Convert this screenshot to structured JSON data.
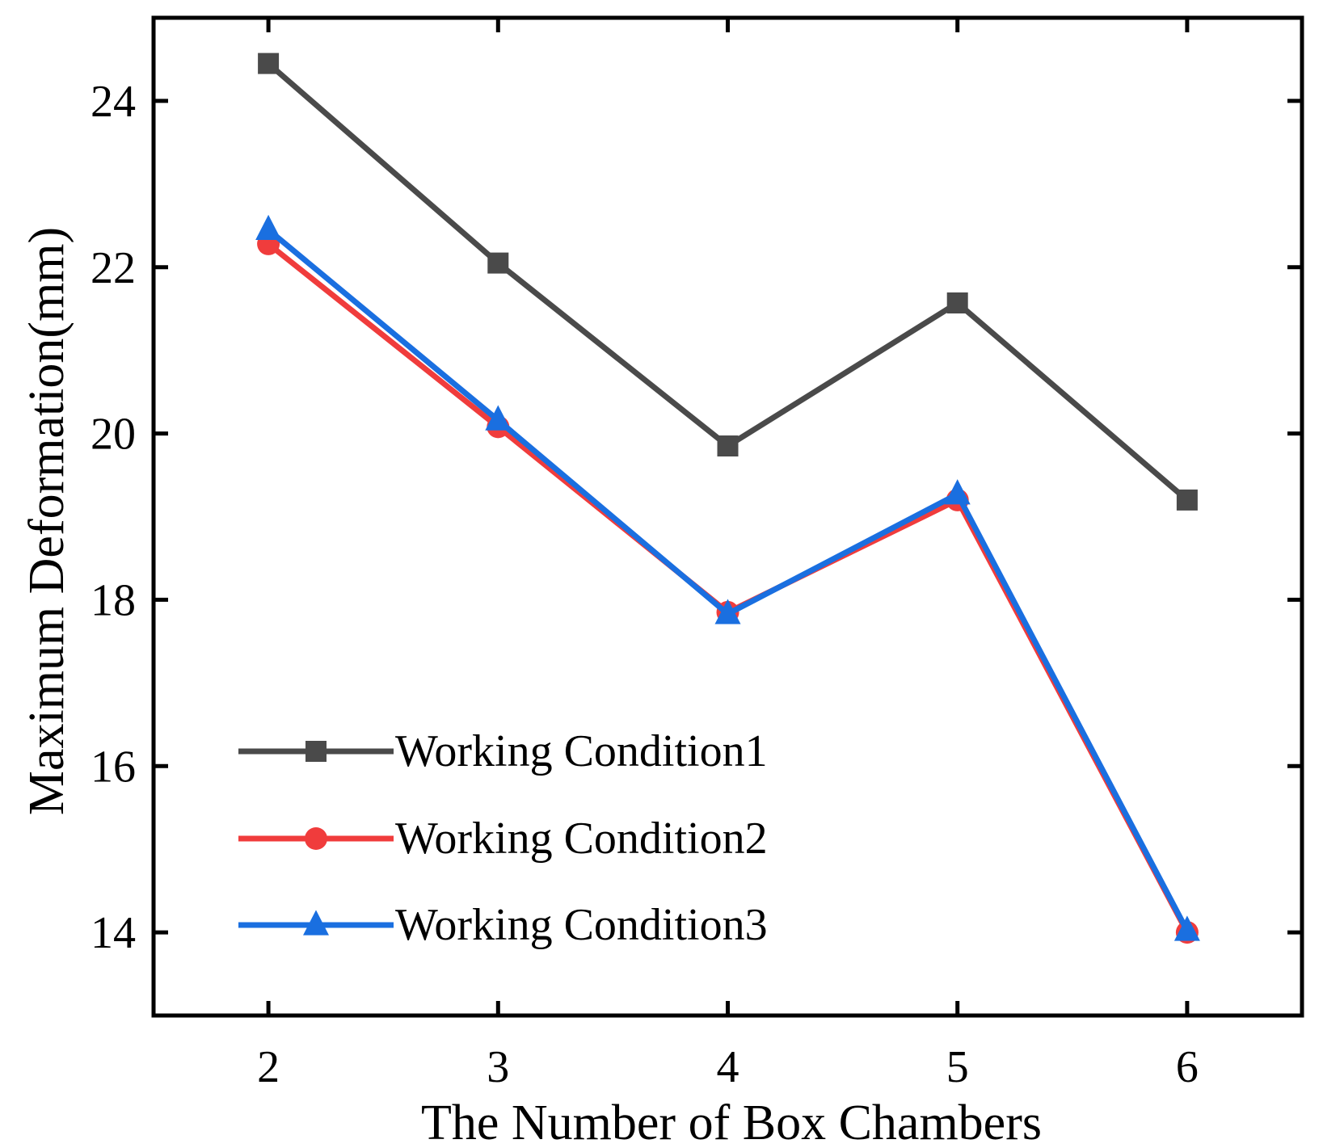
{
  "chart_data": {
    "type": "line",
    "title": "",
    "xlabel": "The Number of Box Chambers",
    "ylabel": "Maximum Deformation(mm)",
    "x": [
      2,
      3,
      4,
      5,
      6
    ],
    "x_tick_labels": [
      "2",
      "3",
      "4",
      "5",
      "6"
    ],
    "y_ticks": [
      14,
      16,
      18,
      20,
      22,
      24
    ],
    "y_tick_labels": [
      "14",
      "16",
      "18",
      "20",
      "22",
      "24"
    ],
    "xlim": [
      1.5,
      6.5
    ],
    "ylim": [
      13,
      25
    ],
    "grid": false,
    "legend_position": "bottom-left",
    "series": [
      {
        "name": "Working Condition1",
        "values": [
          24.45,
          22.05,
          19.85,
          21.57,
          19.2
        ],
        "color": "#4a4a4a",
        "marker": "square"
      },
      {
        "name": "Working Condition2",
        "values": [
          22.28,
          20.08,
          17.85,
          19.2,
          14.0
        ],
        "color": "#f03c3c",
        "marker": "circle"
      },
      {
        "name": "Working Condition3",
        "values": [
          22.45,
          20.16,
          17.83,
          19.27,
          14.02
        ],
        "color": "#1a6fe0",
        "marker": "triangle"
      }
    ]
  }
}
